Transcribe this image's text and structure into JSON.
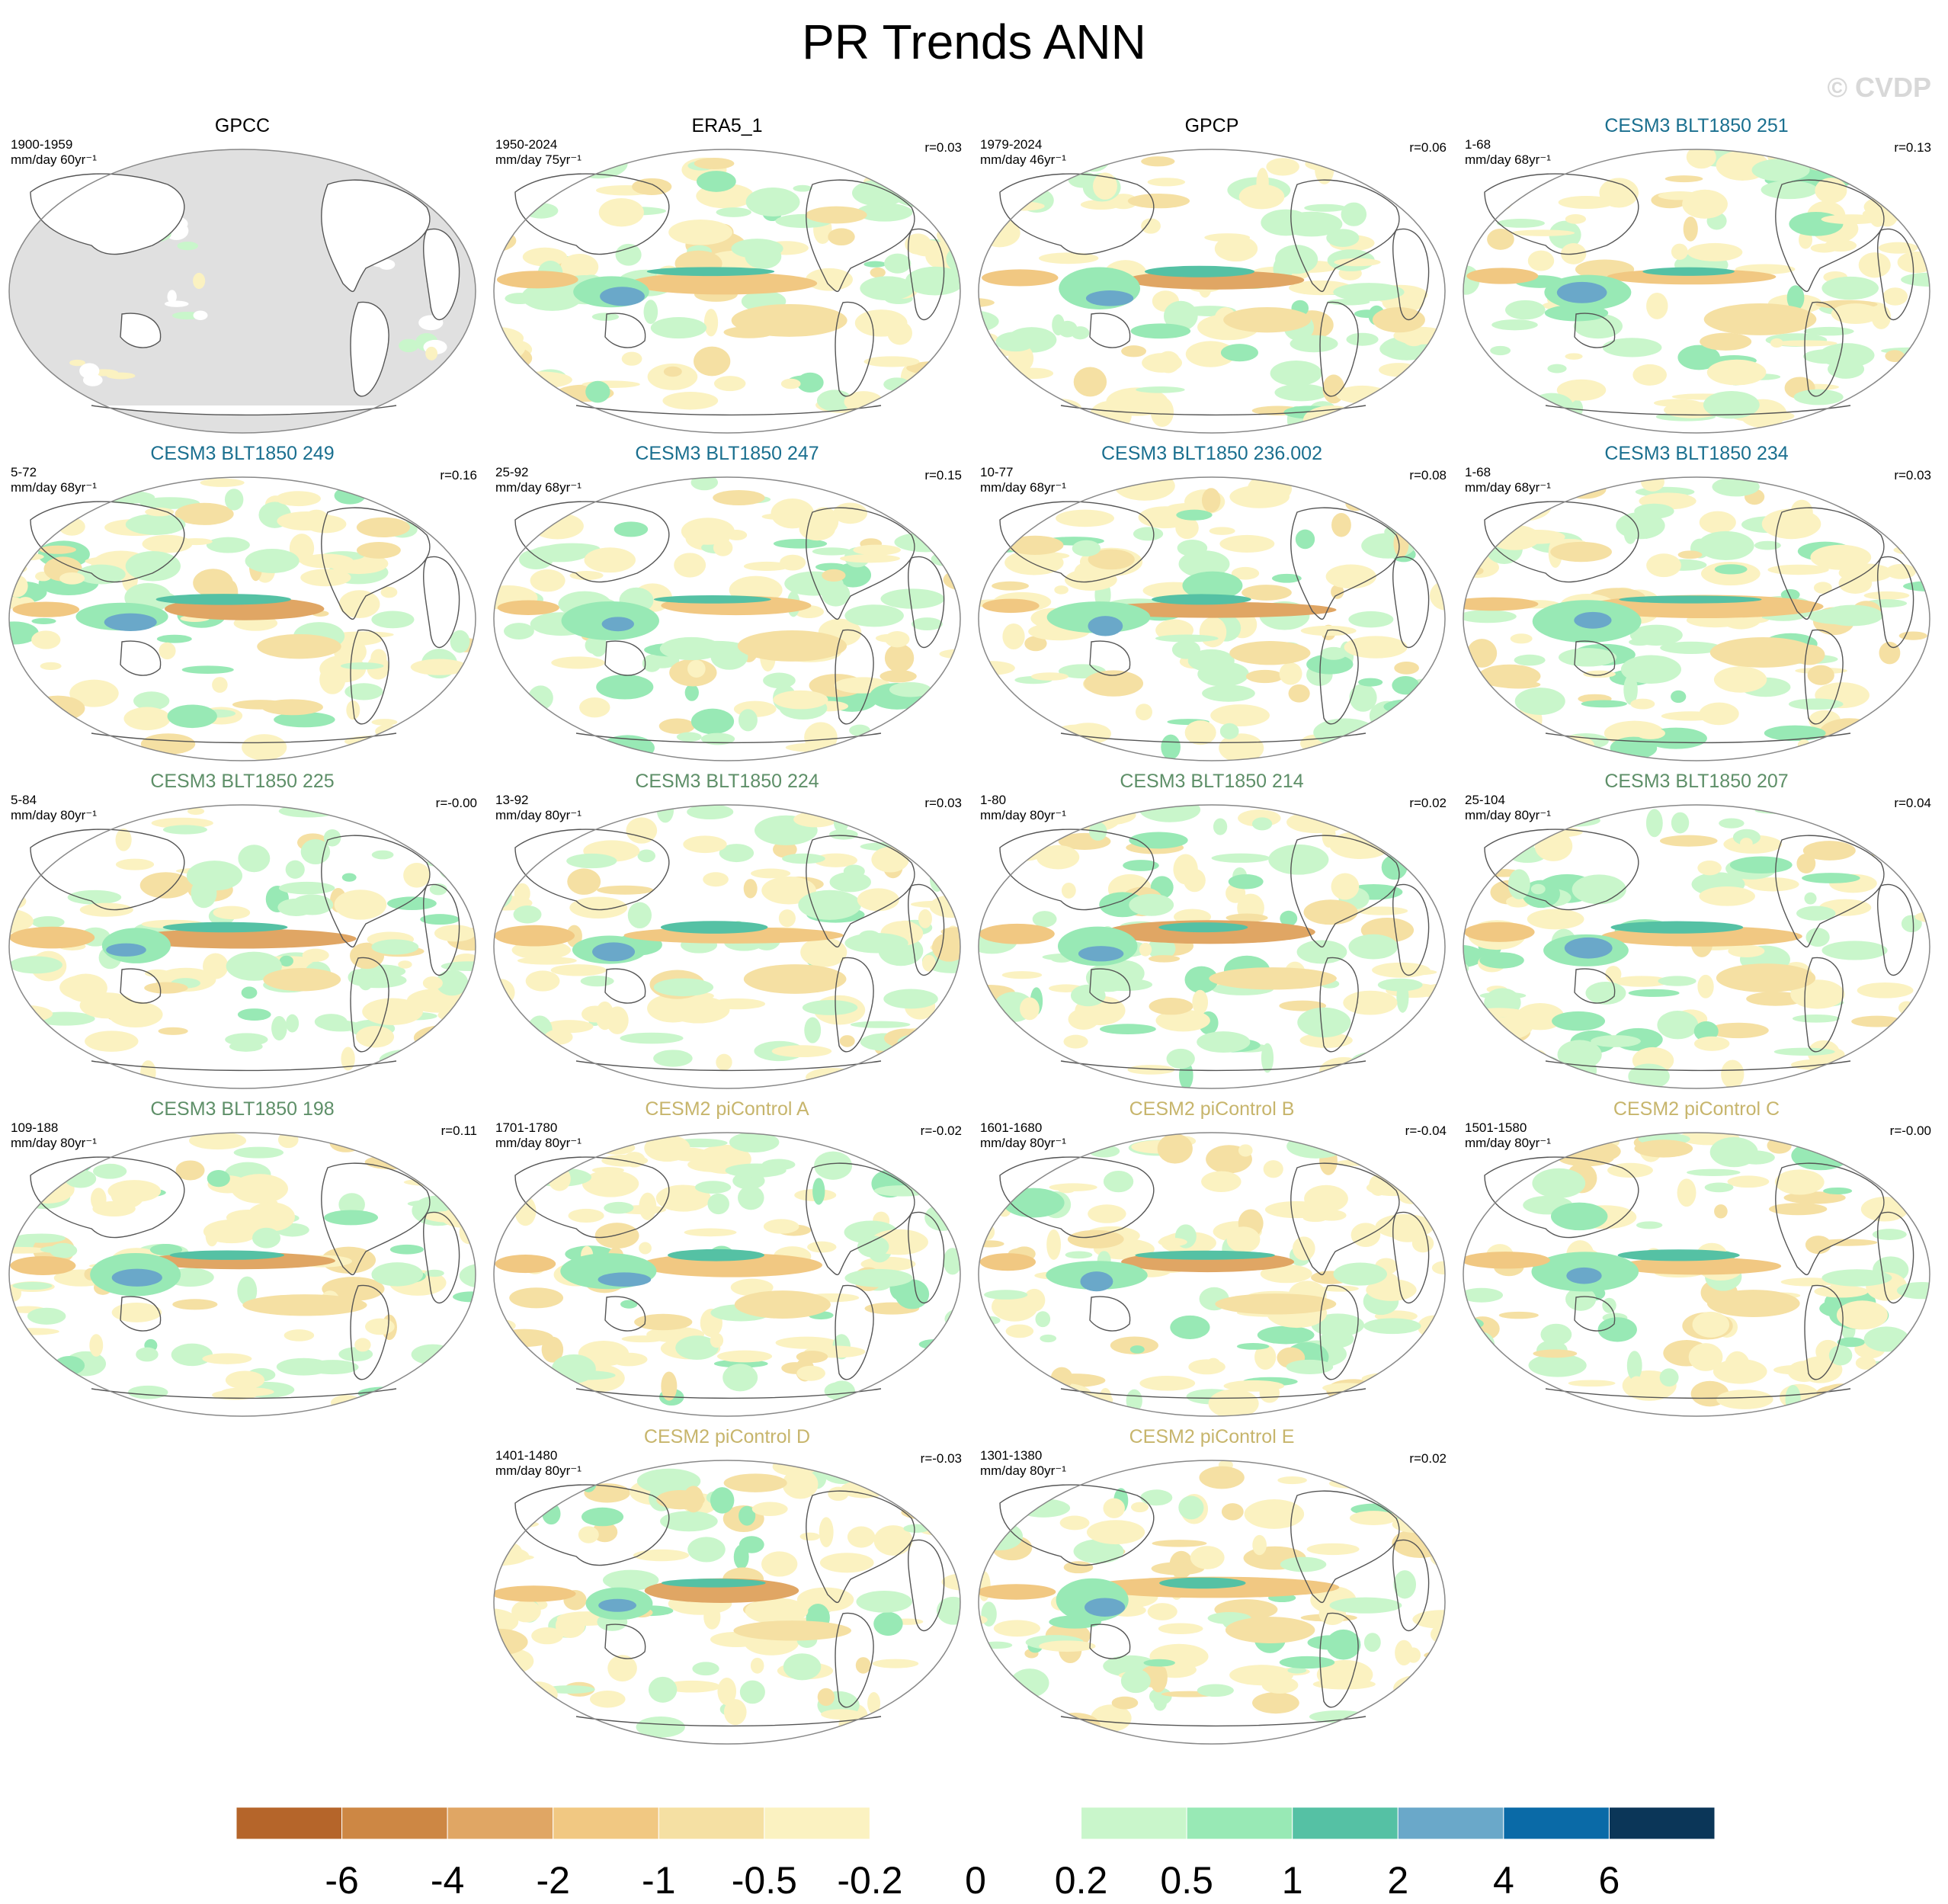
{
  "title": "PR Trends ANN",
  "watermark": "© CVDP",
  "colors": {
    "obs_title": "#000000",
    "blt_251_249_247_236_234": "#1a6f8f",
    "blt_225_224_214_207_198": "#5e8f68",
    "picontrol": "#c7b56c",
    "land_mask": "#e0e0e0",
    "coast": "#555555"
  },
  "panels": [
    {
      "title": "GPCC",
      "period": "1900-1959",
      "unit": "mm/day 60yr⁻¹",
      "r": "",
      "group": "obs",
      "masked": true
    },
    {
      "title": "ERA5_1",
      "period": "1950-2024",
      "unit": "mm/day 75yr⁻¹",
      "r": "r=0.03",
      "group": "obs"
    },
    {
      "title": "GPCP",
      "period": "1979-2024",
      "unit": "mm/day 46yr⁻¹",
      "r": "r=0.06",
      "group": "obs"
    },
    {
      "title": "CESM3 BLT1850 251",
      "period": "1-68",
      "unit": "mm/day 68yr⁻¹",
      "r": "r=0.13",
      "group": "blue"
    },
    {
      "title": "CESM3 BLT1850 249",
      "period": "5-72",
      "unit": "mm/day 68yr⁻¹",
      "r": "r=0.16",
      "group": "blue"
    },
    {
      "title": "CESM3 BLT1850 247",
      "period": "25-92",
      "unit": "mm/day 68yr⁻¹",
      "r": "r=0.15",
      "group": "blue"
    },
    {
      "title": "CESM3 BLT1850 236.002",
      "period": "10-77",
      "unit": "mm/day 68yr⁻¹",
      "r": "r=0.08",
      "group": "blue"
    },
    {
      "title": "CESM3 BLT1850 234",
      "period": "1-68",
      "unit": "mm/day 68yr⁻¹",
      "r": "r=0.03",
      "group": "blue"
    },
    {
      "title": "CESM3 BLT1850 225",
      "period": "5-84",
      "unit": "mm/day 80yr⁻¹",
      "r": "r=-0.00",
      "group": "green"
    },
    {
      "title": "CESM3 BLT1850 224",
      "period": "13-92",
      "unit": "mm/day 80yr⁻¹",
      "r": "r=0.03",
      "group": "green"
    },
    {
      "title": "CESM3 BLT1850 214",
      "period": "1-80",
      "unit": "mm/day 80yr⁻¹",
      "r": "r=0.02",
      "group": "green"
    },
    {
      "title": "CESM3 BLT1850 207",
      "period": "25-104",
      "unit": "mm/day 80yr⁻¹",
      "r": "r=0.04",
      "group": "green"
    },
    {
      "title": "CESM3 BLT1850 198",
      "period": "109-188",
      "unit": "mm/day 80yr⁻¹",
      "r": "r=0.11",
      "group": "green"
    },
    {
      "title": "CESM2 piControl A",
      "period": "1701-1780",
      "unit": "mm/day 80yr⁻¹",
      "r": "r=-0.02",
      "group": "pi"
    },
    {
      "title": "CESM2 piControl B",
      "period": "1601-1680",
      "unit": "mm/day 80yr⁻¹",
      "r": "r=-0.04",
      "group": "pi"
    },
    {
      "title": "CESM2 piControl C",
      "period": "1501-1580",
      "unit": "mm/day 80yr⁻¹",
      "r": "r=-0.00",
      "group": "pi"
    },
    {
      "title": "CESM2 piControl D",
      "period": "1401-1480",
      "unit": "mm/day 80yr⁻¹",
      "r": "r=-0.03",
      "group": "pi"
    },
    {
      "title": "CESM2 piControl E",
      "period": "1301-1380",
      "unit": "mm/day 80yr⁻¹",
      "r": "r=0.02",
      "group": "pi"
    }
  ],
  "colorbar": {
    "colors": [
      "#b5652a",
      "#cd8744",
      "#e0a664",
      "#f1c882",
      "#f5e0a3",
      "#fbf2c1",
      "#ffffff",
      "#ffffff",
      "#c9f6cb",
      "#98e9b5",
      "#55c1a4",
      "#6aa8c9",
      "#0a6aa7",
      "#0b3658"
    ],
    "labels": [
      "-6",
      "-4",
      "-2",
      "-1",
      "-0.5",
      "-0.2",
      "0",
      "0.2",
      "0.5",
      "1",
      "2",
      "4",
      "6"
    ]
  }
}
